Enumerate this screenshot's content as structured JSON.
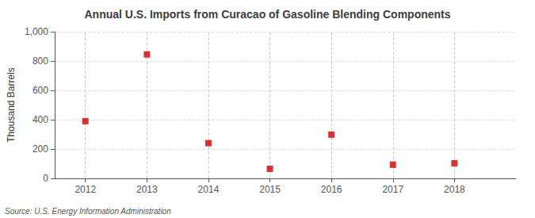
{
  "chart_data": {
    "type": "scatter",
    "title": "Annual U.S. Imports from Curacao of Gasoline Blending Components",
    "ylabel": "Thousand Barrels",
    "annotation": "Source: U.S. Energy Information Administration",
    "x": [
      2012,
      2013,
      2014,
      2015,
      2016,
      2017,
      2018
    ],
    "values": [
      390,
      845,
      240,
      65,
      298,
      93,
      103
    ],
    "color": "#cc0000",
    "marker": "square",
    "xlim": [
      2011.5,
      2019.0
    ],
    "xticks": [
      2012,
      2013,
      2014,
      2015,
      2016,
      2017,
      2018
    ],
    "ylim": [
      0,
      1000
    ],
    "yticks": [
      0,
      200,
      400,
      600,
      800,
      {
        "value": 1000,
        "label": "1,000"
      }
    ],
    "grid": true
  }
}
